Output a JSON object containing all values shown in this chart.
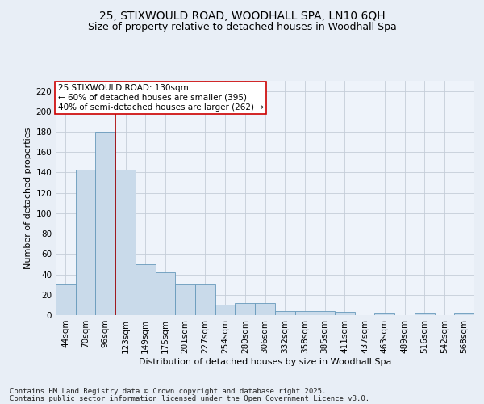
{
  "title1": "25, STIXWOULD ROAD, WOODHALL SPA, LN10 6QH",
  "title2": "Size of property relative to detached houses in Woodhall Spa",
  "xlabel": "Distribution of detached houses by size in Woodhall Spa",
  "ylabel": "Number of detached properties",
  "categories": [
    "44sqm",
    "70sqm",
    "96sqm",
    "123sqm",
    "149sqm",
    "175sqm",
    "201sqm",
    "227sqm",
    "254sqm",
    "280sqm",
    "306sqm",
    "332sqm",
    "358sqm",
    "385sqm",
    "411sqm",
    "437sqm",
    "463sqm",
    "489sqm",
    "516sqm",
    "542sqm",
    "568sqm"
  ],
  "values": [
    30,
    143,
    180,
    143,
    50,
    42,
    30,
    30,
    10,
    12,
    12,
    4,
    4,
    4,
    3,
    0,
    2,
    0,
    2,
    0,
    2
  ],
  "bar_color": "#c9daea",
  "bar_edge_color": "#6699bb",
  "vline_color": "#aa0000",
  "vline_x_index": 2.5,
  "annotation_text": "25 STIXWOULD ROAD: 130sqm\n← 60% of detached houses are smaller (395)\n40% of semi-detached houses are larger (262) →",
  "annotation_box_facecolor": "#ffffff",
  "annotation_box_edgecolor": "#cc0000",
  "ylim": [
    0,
    230
  ],
  "yticks": [
    0,
    20,
    40,
    60,
    80,
    100,
    120,
    140,
    160,
    180,
    200,
    220
  ],
  "footer1": "Contains HM Land Registry data © Crown copyright and database right 2025.",
  "footer2": "Contains public sector information licensed under the Open Government Licence v3.0.",
  "bg_color": "#e8eef6",
  "plot_bg_color": "#eef3fa",
  "grid_color": "#c5cdd8",
  "title1_fontsize": 10,
  "title2_fontsize": 9,
  "axis_fontsize": 8,
  "tick_fontsize": 7.5,
  "footer_fontsize": 6.5,
  "annotation_fontsize": 7.5
}
